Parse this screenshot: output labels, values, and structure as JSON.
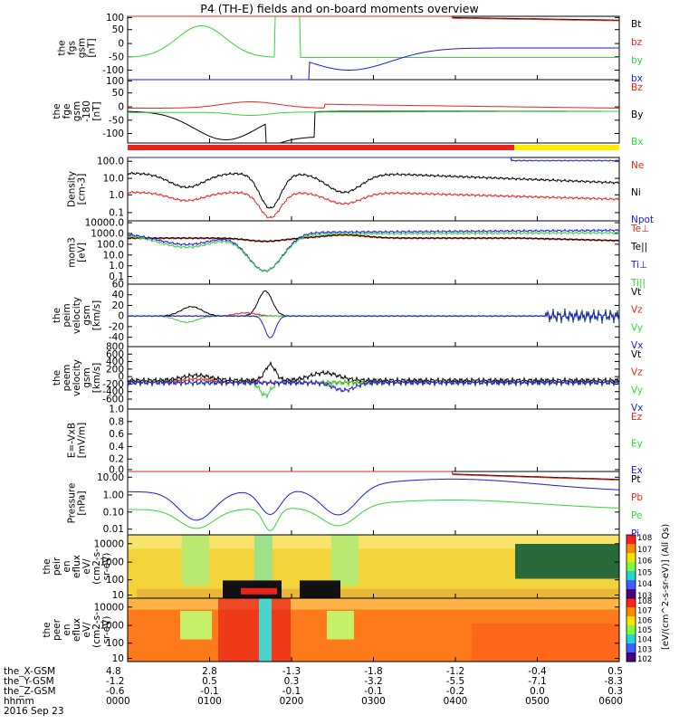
{
  "title": "P4 (TH-E) fields and on-board moments overview",
  "colors": {
    "black": "#000000",
    "red": "#e8251b",
    "green": "#33d633",
    "blue": "#1a1ae6",
    "yellow": "#ffee00"
  },
  "chart_data": {
    "type": "line",
    "x_ticks": [
      {
        "hhmm": "0000",
        "x_gsm": "4.8",
        "y_gsm": "-1.2",
        "z_gsm": "-0.6"
      },
      {
        "hhmm": "0100",
        "x_gsm": "2.8",
        "y_gsm": "0.5",
        "z_gsm": "-0.1"
      },
      {
        "hhmm": "0200",
        "x_gsm": "-1.3",
        "y_gsm": "0.3",
        "z_gsm": "-0.1"
      },
      {
        "hhmm": "0300",
        "x_gsm": "-1.8",
        "y_gsm": "-3.2",
        "z_gsm": "-0.1"
      },
      {
        "hhmm": "0400",
        "x_gsm": "-1.2",
        "y_gsm": "-5.5",
        "z_gsm": "-0.2"
      },
      {
        "hhmm": "0500",
        "x_gsm": "-0.4",
        "y_gsm": "-7.1",
        "z_gsm": "0.0"
      },
      {
        "hhmm": "0600",
        "x_gsm": "0.5",
        "y_gsm": "-8.3",
        "z_gsm": "0.3"
      }
    ],
    "x_row_labels": [
      "the_X-GSM",
      "the_Y-GSM",
      "the_Z-GSM",
      "hhmm"
    ],
    "date": "2016 Sep 23",
    "panels": [
      {
        "ylabel": [
          "the",
          "fgs",
          "gsm",
          "[nT]"
        ],
        "ticks": [
          "100",
          "50",
          "0",
          "-50",
          "-100"
        ],
        "legend": [
          {
            "name": "Bt",
            "color": "black"
          },
          {
            "name": "bz",
            "color": "red"
          },
          {
            "name": "by",
            "color": "green"
          },
          {
            "name": "bx",
            "color": "blue"
          }
        ]
      },
      {
        "ylabel": [
          "the",
          "fge",
          "gsm",
          "-180",
          "[nT]"
        ],
        "ticks": [
          "100",
          "50",
          "0",
          "-50",
          "-100"
        ],
        "legend": [
          {
            "name": "Bz",
            "color": "red"
          },
          {
            "name": "By",
            "color": "black"
          },
          {
            "name": "Bx",
            "color": "green"
          }
        ]
      },
      {
        "ylabel": [
          "Density",
          "[cm-3]"
        ],
        "ticks": [
          "100.0",
          "10.0",
          "1.0",
          "0.1"
        ],
        "legend": [
          {
            "name": "Ne",
            "color": "red"
          },
          {
            "name": "Ni",
            "color": "black"
          },
          {
            "name": "Npot",
            "color": "blue"
          }
        ]
      },
      {
        "ylabel": [
          "mom3",
          "[eV]"
        ],
        "ticks": [
          "10000.0",
          "1000.0",
          "100.0",
          "10.0",
          "1.0",
          "0.1"
        ],
        "legend": [
          {
            "name": "Te⊥",
            "color": "red"
          },
          {
            "name": "Te||",
            "color": "black"
          },
          {
            "name": "Ti⊥",
            "color": "blue"
          },
          {
            "name": "Ti||",
            "color": "green"
          }
        ]
      },
      {
        "ylabel": [
          "the",
          "peim",
          "velocity",
          "gsm",
          "[km/s]"
        ],
        "ticks": [
          "60",
          "40",
          "20",
          "0",
          "-20",
          "-40"
        ],
        "legend": [
          {
            "name": "Vt",
            "color": "black"
          },
          {
            "name": "Vz",
            "color": "red"
          },
          {
            "name": "Vy",
            "color": "green"
          },
          {
            "name": "Vx",
            "color": "blue"
          }
        ]
      },
      {
        "ylabel": [
          "the",
          "peem",
          "velocity",
          "gsm",
          "[km/s]"
        ],
        "ticks": [
          "800",
          "600",
          "400",
          "200",
          "0",
          "-200",
          "-400",
          "-600"
        ],
        "legend": [
          {
            "name": "Vt",
            "color": "black"
          },
          {
            "name": "Vz",
            "color": "red"
          },
          {
            "name": "Vy",
            "color": "green"
          },
          {
            "name": "Vx",
            "color": "blue"
          }
        ]
      },
      {
        "ylabel": [
          "E=-VxB",
          "[mV/m]"
        ],
        "ticks": [
          "1.0",
          "0.8",
          "0.6",
          "0.4",
          "0.2",
          "0.0"
        ],
        "legend": [
          {
            "name": "Ez",
            "color": "red"
          },
          {
            "name": "Ey",
            "color": "green"
          },
          {
            "name": "Ex",
            "color": "blue"
          }
        ]
      },
      {
        "ylabel": [
          "Pressure",
          "[nPa]"
        ],
        "ticks": [
          "10.00",
          "1.00",
          "0.10",
          "0.01"
        ],
        "legend": [
          {
            "name": "Pt",
            "color": "black"
          },
          {
            "name": "Pb",
            "color": "red"
          },
          {
            "name": "Pe",
            "color": "green"
          },
          {
            "name": "Pi",
            "color": "blue"
          }
        ]
      },
      {
        "ylabel": [
          "the",
          "peir",
          "en",
          "eflux",
          "eV/",
          "(cm2-s-",
          "sr-eV)"
        ],
        "ticks": [
          "10000",
          "1000",
          "100",
          "10"
        ]
      },
      {
        "ylabel": [
          "the",
          "peer",
          "en",
          "eflux",
          "eV/",
          "(cm2-s-",
          "sr-eV)"
        ],
        "ticks": [
          "10000",
          "1000",
          "100",
          "10"
        ]
      }
    ],
    "colorbar": {
      "ticks": [
        "10^8",
        "10^7",
        "10^6",
        "10^5",
        "10^4",
        "10^3"
      ],
      "ticks_lower": [
        "10^8",
        "10^7",
        "10^6",
        "10^5",
        "10^4",
        "10^3",
        "10^2"
      ],
      "label": "[eV/(cm^2-s-sr-eV)] (All Qs)"
    }
  }
}
